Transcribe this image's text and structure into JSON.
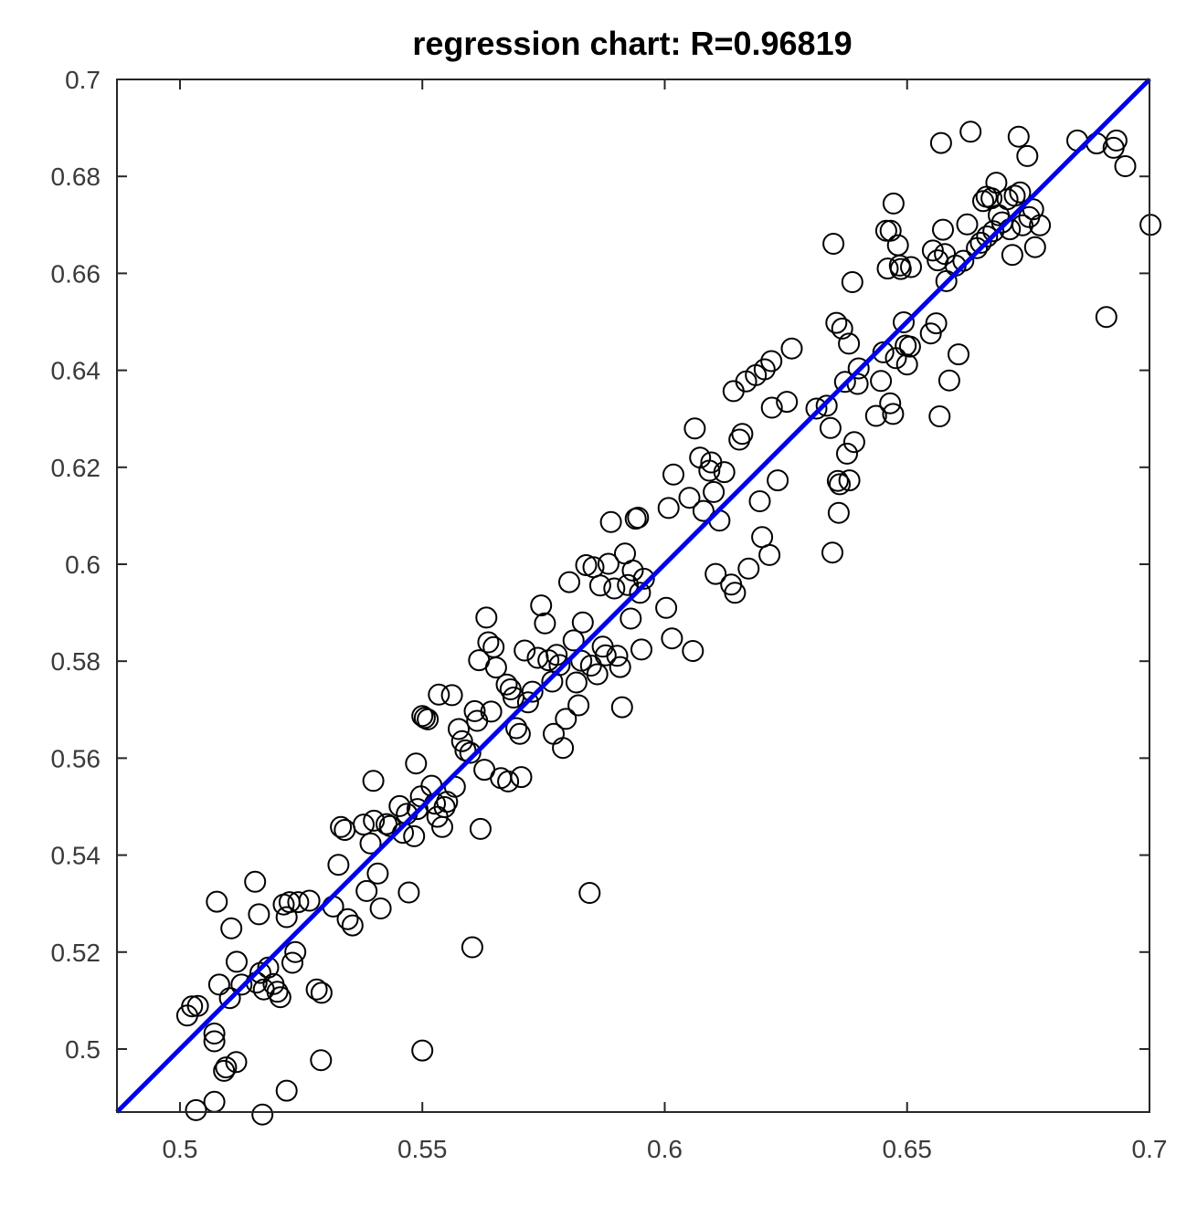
{
  "chart_data": {
    "type": "scatter",
    "title": "regression chart: R=0.96819",
    "xlabel": "",
    "ylabel": "",
    "xlim": [
      0.487,
      0.7
    ],
    "ylim": [
      0.487,
      0.7
    ],
    "xticks": [
      0.5,
      0.55,
      0.6,
      0.65,
      0.7
    ],
    "xtick_labels": [
      "0.5",
      "0.55",
      "0.6",
      "0.65",
      "0.7"
    ],
    "yticks": [
      0.5,
      0.52,
      0.54,
      0.56,
      0.58,
      0.6,
      0.62,
      0.64,
      0.66,
      0.68,
      0.7
    ],
    "ytick_labels": [
      "0.5",
      "0.52",
      "0.54",
      "0.56",
      "0.58",
      "0.6",
      "0.62",
      "0.64",
      "0.66",
      "0.68",
      "0.7"
    ],
    "grid": false,
    "colors": {
      "fit_line": "#0000ee",
      "markers": "#000000",
      "axes": "#262626"
    },
    "fit_line": {
      "x": [
        0.487,
        0.7
      ],
      "y": [
        0.487,
        0.7
      ]
    },
    "points": [
      [
        0.5015,
        0.5069
      ],
      [
        0.5025,
        0.5088
      ],
      [
        0.5037,
        0.5089
      ],
      [
        0.5071,
        0.5032
      ],
      [
        0.5071,
        0.5016
      ],
      [
        0.5076,
        0.5304
      ],
      [
        0.5081,
        0.5133
      ],
      [
        0.5091,
        0.4955
      ],
      [
        0.5095,
        0.4962
      ],
      [
        0.5103,
        0.5105
      ],
      [
        0.5106,
        0.5249
      ],
      [
        0.5117,
        0.518
      ],
      [
        0.5127,
        0.5133
      ],
      [
        0.5116,
        0.4973
      ],
      [
        0.5155,
        0.5345
      ],
      [
        0.5163,
        0.5278
      ],
      [
        0.5158,
        0.5137
      ],
      [
        0.5166,
        0.5157
      ],
      [
        0.5173,
        0.5123
      ],
      [
        0.5182,
        0.5168
      ],
      [
        0.5193,
        0.5134
      ],
      [
        0.5201,
        0.5118
      ],
      [
        0.5207,
        0.5107
      ],
      [
        0.5214,
        0.5298
      ],
      [
        0.522,
        0.5272
      ],
      [
        0.5226,
        0.5303
      ],
      [
        0.5232,
        0.5178
      ],
      [
        0.5238,
        0.52
      ],
      [
        0.5244,
        0.5303
      ],
      [
        0.5267,
        0.5306
      ],
      [
        0.5282,
        0.5123
      ],
      [
        0.5292,
        0.5116
      ],
      [
        0.5291,
        0.4977
      ],
      [
        0.522,
        0.4914
      ],
      [
        0.517,
        0.4865
      ],
      [
        0.5071,
        0.4891
      ],
      [
        0.5033,
        0.4874
      ],
      [
        0.5316,
        0.5294
      ],
      [
        0.5327,
        0.538
      ],
      [
        0.5332,
        0.5458
      ],
      [
        0.534,
        0.5452
      ],
      [
        0.5346,
        0.5268
      ],
      [
        0.5356,
        0.5255
      ],
      [
        0.5379,
        0.5463
      ],
      [
        0.5385,
        0.5326
      ],
      [
        0.5393,
        0.5424
      ],
      [
        0.54,
        0.5471
      ],
      [
        0.5399,
        0.5553
      ],
      [
        0.5408,
        0.5362
      ],
      [
        0.5414,
        0.529
      ],
      [
        0.5426,
        0.5464
      ],
      [
        0.5433,
        0.546
      ],
      [
        0.5453,
        0.5501
      ],
      [
        0.546,
        0.5446
      ],
      [
        0.5468,
        0.5485
      ],
      [
        0.5472,
        0.5323
      ],
      [
        0.5483,
        0.5439
      ],
      [
        0.5487,
        0.5589
      ],
      [
        0.549,
        0.5495
      ],
      [
        0.5497,
        0.5521
      ],
      [
        0.55,
        0.5687
      ],
      [
        0.5505,
        0.5683
      ],
      [
        0.5511,
        0.568
      ],
      [
        0.5519,
        0.5543
      ],
      [
        0.5526,
        0.5506
      ],
      [
        0.5531,
        0.5479
      ],
      [
        0.5534,
        0.5731
      ],
      [
        0.5541,
        0.5458
      ],
      [
        0.5546,
        0.5499
      ],
      [
        0.5551,
        0.551
      ],
      [
        0.5561,
        0.573
      ],
      [
        0.5567,
        0.5541
      ],
      [
        0.5575,
        0.566
      ],
      [
        0.5582,
        0.5635
      ],
      [
        0.5589,
        0.5616
      ],
      [
        0.5599,
        0.5611
      ],
      [
        0.5608,
        0.5697
      ],
      [
        0.5613,
        0.5677
      ],
      [
        0.5617,
        0.5802
      ],
      [
        0.562,
        0.5454
      ],
      [
        0.5628,
        0.5576
      ],
      [
        0.5632,
        0.589
      ],
      [
        0.5636,
        0.5839
      ],
      [
        0.5642,
        0.5696
      ],
      [
        0.5647,
        0.5829
      ],
      [
        0.5652,
        0.5787
      ],
      [
        0.5662,
        0.5559
      ],
      [
        0.5674,
        0.5752
      ],
      [
        0.5677,
        0.5552
      ],
      [
        0.5682,
        0.5742
      ],
      [
        0.5688,
        0.5725
      ],
      [
        0.5694,
        0.5662
      ],
      [
        0.5701,
        0.565
      ],
      [
        0.5704,
        0.5561
      ],
      [
        0.5711,
        0.5822
      ],
      [
        0.5718,
        0.5715
      ],
      [
        0.5727,
        0.5737
      ],
      [
        0.5738,
        0.5807
      ],
      [
        0.5745,
        0.5915
      ],
      [
        0.5753,
        0.5878
      ],
      [
        0.576,
        0.5802
      ],
      [
        0.5768,
        0.5758
      ],
      [
        0.5771,
        0.565
      ],
      [
        0.5777,
        0.5813
      ],
      [
        0.5783,
        0.5792
      ],
      [
        0.579,
        0.5621
      ],
      [
        0.5796,
        0.5681
      ],
      [
        0.5803,
        0.5963
      ],
      [
        0.5812,
        0.5843
      ],
      [
        0.5818,
        0.5756
      ],
      [
        0.5822,
        0.5709
      ],
      [
        0.5828,
        0.5801
      ],
      [
        0.5831,
        0.588
      ],
      [
        0.5838,
        0.5998
      ],
      [
        0.5845,
        0.5322
      ],
      [
        0.5848,
        0.5791
      ],
      [
        0.5853,
        0.5994
      ],
      [
        0.5861,
        0.5773
      ],
      [
        0.5867,
        0.5956
      ],
      [
        0.5872,
        0.583
      ],
      [
        0.5878,
        0.5812
      ],
      [
        0.5884,
        0.6001
      ],
      [
        0.5889,
        0.6087
      ],
      [
        0.5896,
        0.595
      ],
      [
        0.5902,
        0.5811
      ],
      [
        0.5908,
        0.5788
      ],
      [
        0.5912,
        0.5705
      ],
      [
        0.5918,
        0.6022
      ],
      [
        0.5924,
        0.5957
      ],
      [
        0.593,
        0.5888
      ],
      [
        0.5934,
        0.5987
      ],
      [
        0.594,
        0.6094
      ],
      [
        0.5945,
        0.6096
      ],
      [
        0.5949,
        0.5941
      ],
      [
        0.5952,
        0.5824
      ],
      [
        0.5957,
        0.597
      ],
      [
        0.5603,
        0.521
      ],
      [
        0.55,
        0.4997
      ],
      [
        0.6003,
        0.591
      ],
      [
        0.6015,
        0.5847
      ],
      [
        0.6008,
        0.6116
      ],
      [
        0.6018,
        0.6185
      ],
      [
        0.6051,
        0.6137
      ],
      [
        0.6058,
        0.5821
      ],
      [
        0.6062,
        0.628
      ],
      [
        0.6073,
        0.622
      ],
      [
        0.608,
        0.611
      ],
      [
        0.6092,
        0.6193
      ],
      [
        0.6096,
        0.621
      ],
      [
        0.6101,
        0.6149
      ],
      [
        0.6105,
        0.598
      ],
      [
        0.6113,
        0.609
      ],
      [
        0.6123,
        0.619
      ],
      [
        0.6137,
        0.5958
      ],
      [
        0.6145,
        0.5941
      ],
      [
        0.6142,
        0.6357
      ],
      [
        0.6154,
        0.6257
      ],
      [
        0.616,
        0.6269
      ],
      [
        0.6168,
        0.6377
      ],
      [
        0.6173,
        0.5991
      ],
      [
        0.6188,
        0.639
      ],
      [
        0.6196,
        0.613
      ],
      [
        0.6201,
        0.6056
      ],
      [
        0.6206,
        0.6402
      ],
      [
        0.6216,
        0.6019
      ],
      [
        0.622,
        0.6419
      ],
      [
        0.6221,
        0.6323
      ],
      [
        0.6233,
        0.6173
      ],
      [
        0.6252,
        0.6335
      ],
      [
        0.6262,
        0.6445
      ],
      [
        0.6313,
        0.6321
      ],
      [
        0.6334,
        0.6327
      ],
      [
        0.6342,
        0.6281
      ],
      [
        0.6346,
        0.6024
      ],
      [
        0.6348,
        0.6661
      ],
      [
        0.6354,
        0.6498
      ],
      [
        0.6357,
        0.6172
      ],
      [
        0.6359,
        0.6106
      ],
      [
        0.6361,
        0.6165
      ],
      [
        0.6366,
        0.6486
      ],
      [
        0.6372,
        0.6376
      ],
      [
        0.6376,
        0.6228
      ],
      [
        0.638,
        0.6455
      ],
      [
        0.6381,
        0.6173
      ],
      [
        0.6387,
        0.6582
      ],
      [
        0.6391,
        0.6252
      ],
      [
        0.6398,
        0.6372
      ],
      [
        0.64,
        0.6404
      ],
      [
        0.6436,
        0.6306
      ],
      [
        0.6446,
        0.6378
      ],
      [
        0.6451,
        0.6437
      ],
      [
        0.6457,
        0.6688
      ],
      [
        0.646,
        0.661
      ],
      [
        0.6465,
        0.6332
      ],
      [
        0.6466,
        0.6688
      ],
      [
        0.6471,
        0.631
      ],
      [
        0.6472,
        0.6744
      ],
      [
        0.6477,
        0.6425
      ],
      [
        0.6481,
        0.6658
      ],
      [
        0.6485,
        0.6616
      ],
      [
        0.6487,
        0.6609
      ],
      [
        0.6493,
        0.6499
      ],
      [
        0.6497,
        0.6451
      ],
      [
        0.65,
        0.6412
      ],
      [
        0.6506,
        0.6449
      ],
      [
        0.6508,
        0.6613
      ],
      [
        0.6549,
        0.6476
      ],
      [
        0.656,
        0.6497
      ],
      [
        0.6553,
        0.6647
      ],
      [
        0.6563,
        0.6627
      ],
      [
        0.6567,
        0.6305
      ],
      [
        0.657,
        0.6869
      ],
      [
        0.6574,
        0.669
      ],
      [
        0.6578,
        0.664
      ],
      [
        0.6581,
        0.6584
      ],
      [
        0.6587,
        0.6379
      ],
      [
        0.66,
        0.6616
      ],
      [
        0.6606,
        0.6433
      ],
      [
        0.6616,
        0.6626
      ],
      [
        0.6624,
        0.6701
      ],
      [
        0.6631,
        0.6892
      ],
      [
        0.6644,
        0.6652
      ],
      [
        0.6652,
        0.6663
      ],
      [
        0.6657,
        0.6749
      ],
      [
        0.6664,
        0.6758
      ],
      [
        0.6665,
        0.6676
      ],
      [
        0.6674,
        0.6755
      ],
      [
        0.6678,
        0.6687
      ],
      [
        0.6684,
        0.6787
      ],
      [
        0.6689,
        0.672
      ],
      [
        0.6696,
        0.6705
      ],
      [
        0.6707,
        0.6753
      ],
      [
        0.6712,
        0.6691
      ],
      [
        0.6717,
        0.6638
      ],
      [
        0.6722,
        0.676
      ],
      [
        0.673,
        0.6882
      ],
      [
        0.6733,
        0.6767
      ],
      [
        0.6738,
        0.6699
      ],
      [
        0.6748,
        0.6842
      ],
      [
        0.6752,
        0.6716
      ],
      [
        0.676,
        0.6732
      ],
      [
        0.6764,
        0.6654
      ],
      [
        0.6774,
        0.6699
      ],
      [
        0.6851,
        0.6874
      ],
      [
        0.6891,
        0.6868
      ],
      [
        0.6911,
        0.651
      ],
      [
        0.6926,
        0.6859
      ],
      [
        0.6932,
        0.6874
      ],
      [
        0.695,
        0.6821
      ],
      [
        0.7002,
        0.67
      ]
    ]
  }
}
